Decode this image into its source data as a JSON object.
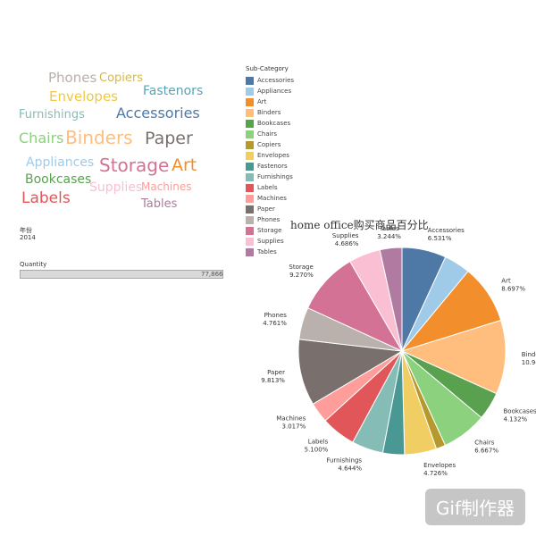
{
  "wordcloud": {
    "words": [
      {
        "text": "Phones",
        "color": "#bab0ac"
      },
      {
        "text": "Copiers",
        "color": "#d4b94f"
      },
      {
        "text": "Envelopes",
        "color": "#edc948"
      },
      {
        "text": "Fastenors",
        "color": "#59a3b8"
      },
      {
        "text": "Furnishings",
        "color": "#86bcb6"
      },
      {
        "text": "Accessories",
        "color": "#4e79a7"
      },
      {
        "text": "Chairs",
        "color": "#8cd17d"
      },
      {
        "text": "Binders",
        "color": "#ffbe7d"
      },
      {
        "text": "Paper",
        "color": "#79706e"
      },
      {
        "text": "Appliances",
        "color": "#a0cbe8"
      },
      {
        "text": "Storage",
        "color": "#d37295"
      },
      {
        "text": "Art",
        "color": "#f28e2b"
      },
      {
        "text": "Bookcases",
        "color": "#59a14f"
      },
      {
        "text": "Supplies",
        "color": "#fabfd2"
      },
      {
        "text": "Machines",
        "color": "#ff9d9a"
      },
      {
        "text": "Labels",
        "color": "#e15759"
      },
      {
        "text": "Tables",
        "color": "#b07aa1"
      }
    ]
  },
  "filters": {
    "year_label": "年份",
    "year_value": "2014",
    "quantity_label": "Quantity",
    "quantity_value": "77,866",
    "quantity_fill_fraction": 1.0
  },
  "legend": {
    "title": "Sub-Category",
    "items": [
      {
        "label": "Accessories",
        "color": "#4e79a7"
      },
      {
        "label": "Appliances",
        "color": "#a0cbe8"
      },
      {
        "label": "Art",
        "color": "#f28e2b"
      },
      {
        "label": "Binders",
        "color": "#ffbe7d"
      },
      {
        "label": "Bookcases",
        "color": "#59a14f"
      },
      {
        "label": "Chairs",
        "color": "#8cd17d"
      },
      {
        "label": "Copiers",
        "color": "#b6992d"
      },
      {
        "label": "Envelopes",
        "color": "#f1ce63"
      },
      {
        "label": "Fastenors",
        "color": "#499894"
      },
      {
        "label": "Furnishings",
        "color": "#86bcb6"
      },
      {
        "label": "Labels",
        "color": "#e15759"
      },
      {
        "label": "Machines",
        "color": "#ff9d9a"
      },
      {
        "label": "Paper",
        "color": "#79706e"
      },
      {
        "label": "Phones",
        "color": "#bab0ac"
      },
      {
        "label": "Storage",
        "color": "#d37295"
      },
      {
        "label": "Supplies",
        "color": "#fabfd2"
      },
      {
        "label": "Tables",
        "color": "#b07aa1"
      }
    ]
  },
  "chart_data": {
    "type": "pie",
    "title": "home office购买商品百分比",
    "slices": [
      {
        "name": "Accessories",
        "value": 6.531,
        "label": "Accessories",
        "percent_text": "6.531%",
        "color": "#4e79a7"
      },
      {
        "name": "Appliances",
        "value": 3.9,
        "label": "",
        "percent_text": "",
        "color": "#a0cbe8"
      },
      {
        "name": "Art",
        "value": 8.697,
        "label": "Art",
        "percent_text": "8.697%",
        "color": "#f28e2b"
      },
      {
        "name": "Binders",
        "value": 10.941,
        "label": "Binders",
        "percent_text": "10.941%",
        "color": "#ffbe7d"
      },
      {
        "name": "Bookcases",
        "value": 4.132,
        "label": "Bookcases",
        "percent_text": "4.132%",
        "color": "#59a14f"
      },
      {
        "name": "Chairs",
        "value": 6.667,
        "label": "Chairs",
        "percent_text": "6.667%",
        "color": "#8cd17d"
      },
      {
        "name": "Copiers",
        "value": 1.4,
        "label": "",
        "percent_text": "",
        "color": "#b6992d"
      },
      {
        "name": "Envelopes",
        "value": 4.726,
        "label": "Envelopes",
        "percent_text": "4.726%",
        "color": "#f1ce63"
      },
      {
        "name": "Fastenors",
        "value": 3.2,
        "label": "",
        "percent_text": "",
        "color": "#499894"
      },
      {
        "name": "Furnishings",
        "value": 4.644,
        "label": "Furnishings",
        "percent_text": "4.644%",
        "color": "#86bcb6"
      },
      {
        "name": "Labels",
        "value": 5.1,
        "label": "Labels",
        "percent_text": "5.100%",
        "color": "#e15759"
      },
      {
        "name": "Machines",
        "value": 3.017,
        "label": "Machines",
        "percent_text": "3.017%",
        "color": "#ff9d9a"
      },
      {
        "name": "Paper",
        "value": 9.813,
        "label": "Paper",
        "percent_text": "9.813%",
        "color": "#79706e"
      },
      {
        "name": "Phones",
        "value": 4.761,
        "label": "Phones",
        "percent_text": "4.761%",
        "color": "#bab0ac"
      },
      {
        "name": "Storage",
        "value": 9.27,
        "label": "Storage",
        "percent_text": "9.270%",
        "color": "#d37295"
      },
      {
        "name": "Supplies",
        "value": 4.686,
        "label": "Supplies",
        "percent_text": "4.686%",
        "color": "#fabfd2"
      },
      {
        "name": "Tables",
        "value": 3.244,
        "label": "Tables",
        "percent_text": "3.244%",
        "color": "#b07aa1"
      }
    ]
  },
  "watermark": {
    "text": "Gif制作器"
  }
}
